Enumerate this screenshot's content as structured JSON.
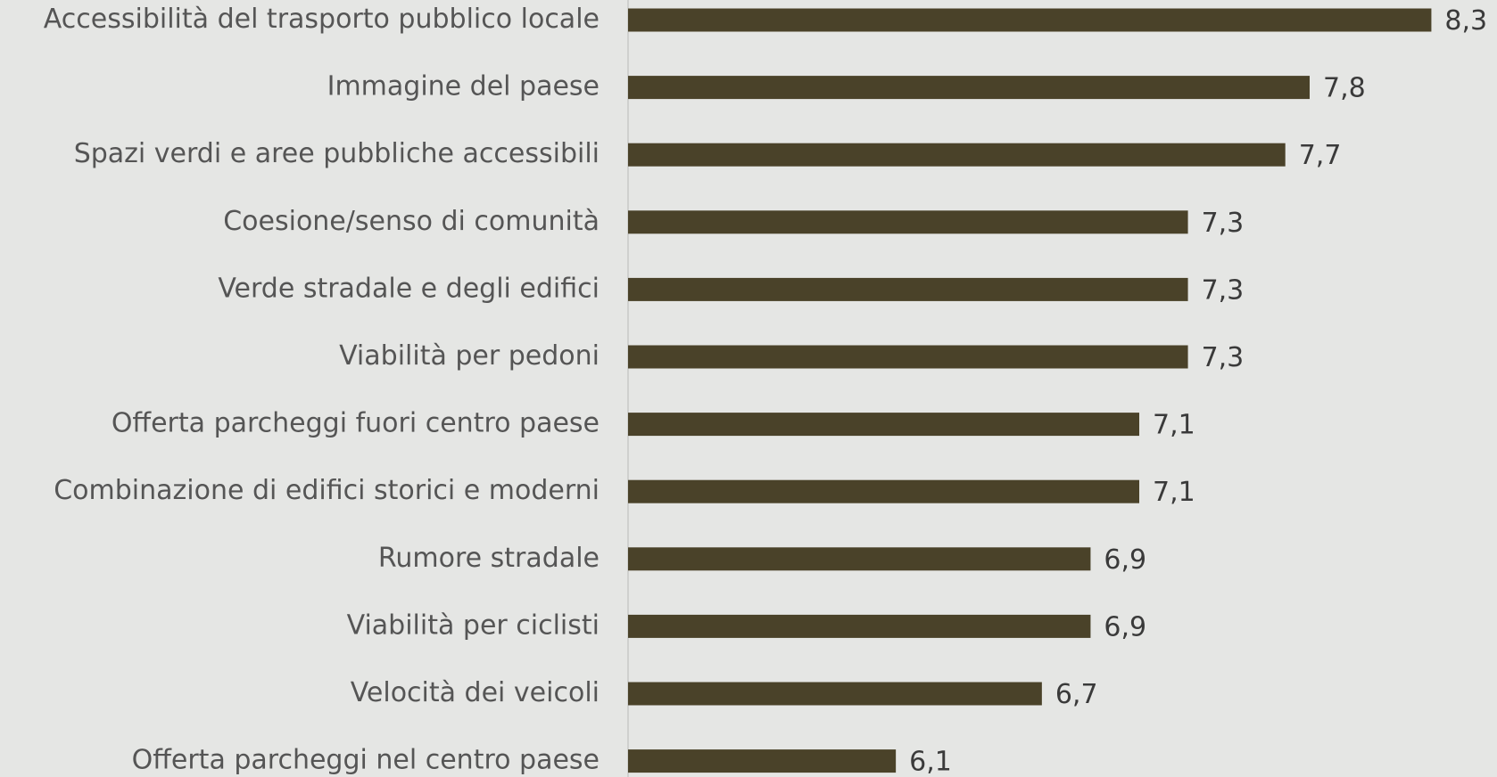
{
  "chart_data": {
    "type": "barh",
    "categories": [
      "Accessibilità del trasporto pubblico locale",
      "Immagine del paese",
      "Spazi verdi e aree pubbliche accessibili",
      "Coesione/senso di comunità",
      "Verde stradale e degli edifici",
      "Viabilità per pedoni",
      "Offerta parcheggi fuori centro paese",
      "Combinazione di edifici storici e moderni",
      "Rumore stradale",
      "Viabilità per ciclisti",
      "Velocità dei veicoli",
      "Offerta parcheggi nel centro paese"
    ],
    "values": [
      8.3,
      7.8,
      7.7,
      7.3,
      7.3,
      7.3,
      7.1,
      7.1,
      6.9,
      6.9,
      6.7,
      6.1
    ],
    "value_labels": [
      "8,3",
      "7,8",
      "7,7",
      "7,3",
      "7,3",
      "7,3",
      "7,1",
      "7,1",
      "6,9",
      "6,9",
      "6,7",
      "6,1"
    ],
    "color": "#4a4229",
    "xlim": [
      5,
      8.5
    ]
  }
}
